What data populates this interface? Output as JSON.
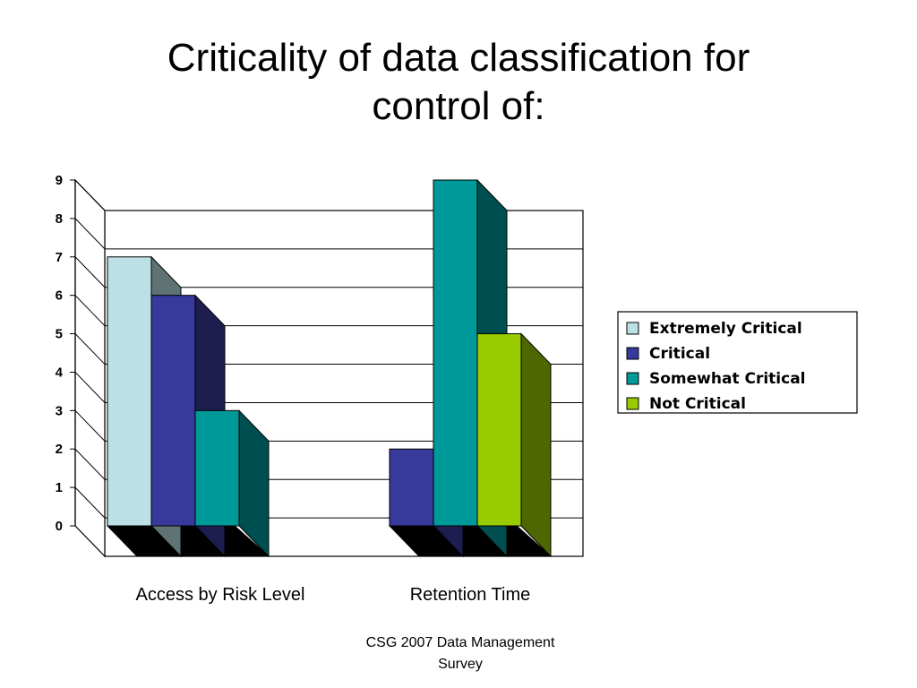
{
  "slide": {
    "title_lines": [
      "Criticality of data classification for",
      "control of:"
    ],
    "footer_lines": [
      "CSG 2007 Data Management",
      "Survey"
    ]
  },
  "chart_data": {
    "type": "bar",
    "style": "3d-clustered-column",
    "title": "Criticality of data classification for control of:",
    "categories": [
      "Access  by Risk Level",
      "Retention Time"
    ],
    "series": [
      {
        "name": "Extremely Critical",
        "values": [
          7,
          0
        ],
        "color": "#BDE0E6",
        "side_color": "#5F7374"
      },
      {
        "name": "Critical",
        "values": [
          6,
          2
        ],
        "color": "#37399B",
        "side_color": "#1D1D50"
      },
      {
        "name": "Somewhat Critical",
        "values": [
          3,
          9
        ],
        "color": "#009999",
        "side_color": "#004F50"
      },
      {
        "name": "Not Critical",
        "values": [
          0,
          5
        ],
        "color": "#99CC00",
        "side_color": "#4E6700"
      }
    ],
    "y_ticks": [
      "0",
      "1",
      "2",
      "3",
      "4",
      "5",
      "6",
      "7",
      "8",
      "9"
    ],
    "ylim": [
      0,
      9
    ],
    "xlabel": "",
    "ylabel": "",
    "grid": true,
    "legend": "right",
    "floor_color": "#000000"
  }
}
